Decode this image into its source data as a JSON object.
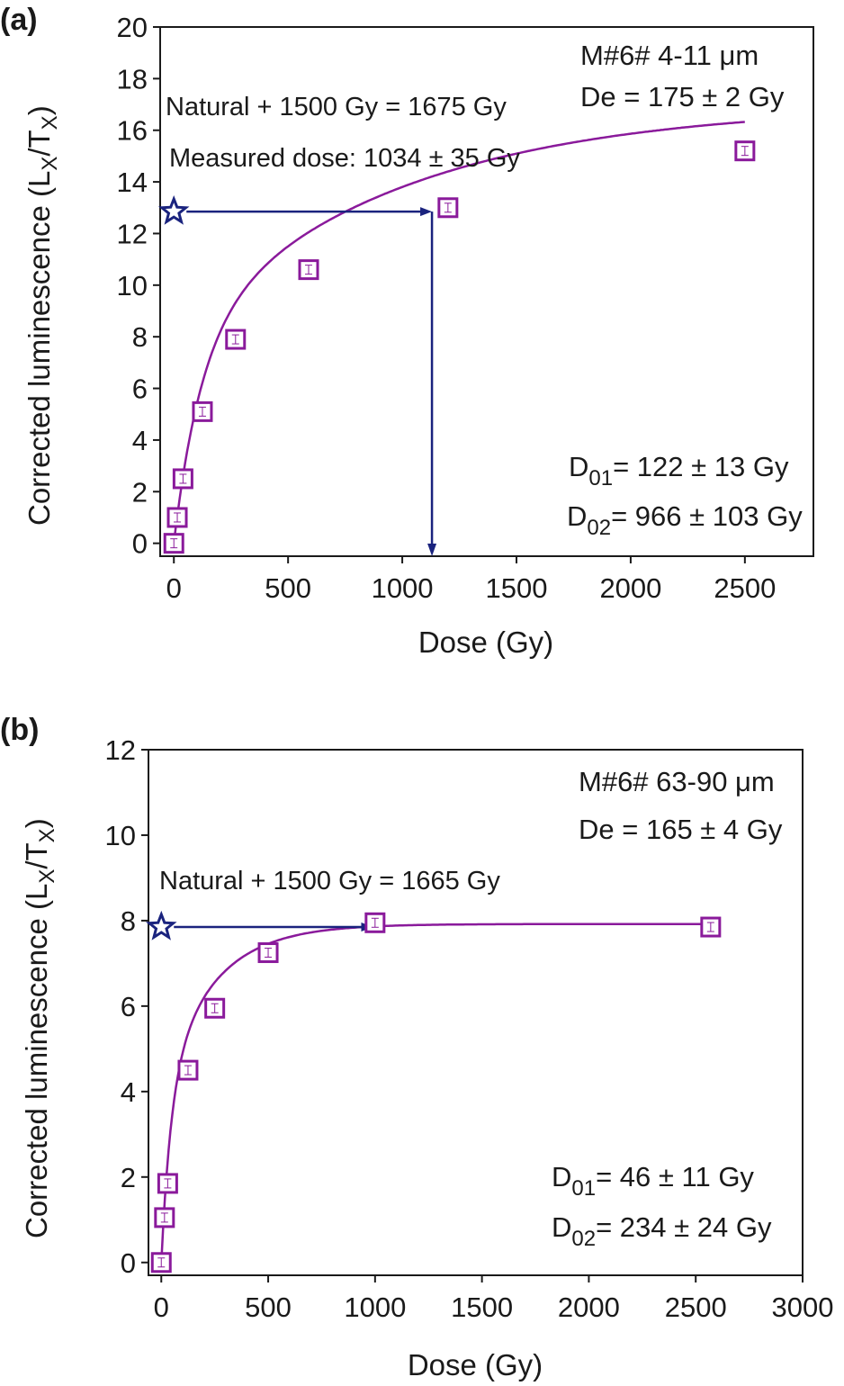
{
  "panels": [
    {
      "label": "(a)",
      "sample": "M#6# 4-11 μm",
      "de": "De = 175 ± 2 Gy",
      "note1": "Natural + 1500 Gy = 1675 Gy",
      "note2": "Measured dose: 1034 ± 35 Gy",
      "d01_val": "= 122 ± 13 Gy",
      "d02_val": "= 966 ± 103 Gy"
    },
    {
      "label": "(b)",
      "sample": "M#6# 63-90 μm",
      "de": "De = 165 ± 4 Gy",
      "note1": "Natural + 1500 Gy = 1665 Gy",
      "note2": "",
      "d01_val": "= 46 ± 11 Gy",
      "d02_val": "= 234 ± 24 Gy"
    }
  ],
  "chart_data": [
    {
      "type": "scatter",
      "title": "",
      "xlabel": "Dose (Gy)",
      "ylabel_main": "Corrected luminescence (L",
      "ylabel_x": "X",
      "ylabel_slash": "/T",
      "ylabel_end": ")",
      "xlim": [
        -60,
        2800
      ],
      "ylim": [
        -0.5,
        20
      ],
      "xticks": [
        0,
        500,
        1000,
        1500,
        2000,
        2500
      ],
      "yticks": [
        0,
        2,
        4,
        6,
        8,
        10,
        12,
        14,
        16,
        18,
        20
      ],
      "grid": false,
      "series": [
        {
          "marker": "square",
          "color": "#8a1a9b",
          "x": [
            0,
            15,
            40,
            125,
            270,
            590,
            1200,
            2500
          ],
          "y": [
            0,
            1.0,
            2.5,
            5.1,
            7.9,
            10.6,
            13.0,
            15.2
          ]
        },
        {
          "marker": "star",
          "color": "#1a237e",
          "x": [
            0
          ],
          "y": [
            12.85
          ]
        }
      ],
      "fit": {
        "color": "#8a1a9b",
        "a": 8.0,
        "d1": 122,
        "b": 9.0,
        "d2": 966
      },
      "natural_arrow": {
        "color": "#1a237e",
        "y": 12.85,
        "x_intersect": 1130
      }
    },
    {
      "type": "scatter",
      "title": "",
      "xlabel": "Dose (Gy)",
      "ylabel_main": "Corrected luminescence (L",
      "ylabel_x": "X",
      "ylabel_slash": "/T",
      "ylabel_end": ")",
      "xlim": [
        -60,
        3000
      ],
      "ylim": [
        -0.3,
        12
      ],
      "xticks": [
        0,
        500,
        1000,
        1500,
        2000,
        2500,
        3000
      ],
      "yticks": [
        0,
        2,
        4,
        6,
        8,
        10,
        12
      ],
      "grid": false,
      "series": [
        {
          "marker": "square",
          "color": "#8a1a9b",
          "x": [
            0,
            15,
            30,
            125,
            250,
            500,
            1000,
            2570
          ],
          "y": [
            0,
            1.05,
            1.85,
            4.5,
            5.95,
            7.25,
            7.95,
            7.85
          ]
        },
        {
          "marker": "star",
          "color": "#1a237e",
          "x": [
            0
          ],
          "y": [
            7.85
          ]
        }
      ],
      "fit": {
        "color": "#8a1a9b",
        "a": 4.0,
        "d1": 46,
        "b": 3.92,
        "d2": 234
      },
      "natural_arrow": {
        "color": "#1a237e",
        "y": 7.85,
        "x_intersect": 990
      }
    }
  ]
}
